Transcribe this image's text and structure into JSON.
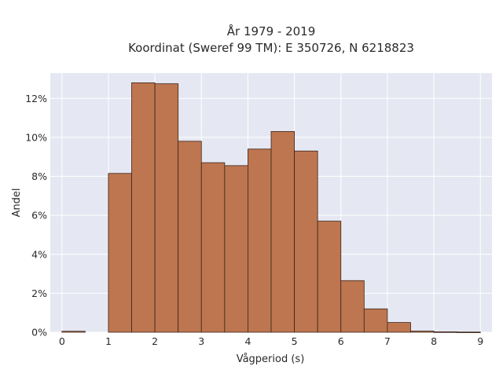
{
  "chart_data": {
    "type": "bar",
    "title_line1": "År 1979 - 2019",
    "title_line2": "Koordinat (Sweref 99 TM): E 350726, N 6218823",
    "xlabel": "Vågperiod (s)",
    "ylabel": "Andel",
    "xlim": [
      -0.25,
      9.25
    ],
    "ylim": [
      0,
      13.3
    ],
    "xticks": [
      0,
      1,
      2,
      3,
      4,
      5,
      6,
      7,
      8,
      9
    ],
    "yticks": [
      0,
      2,
      4,
      6,
      8,
      10,
      12
    ],
    "ytick_suffix": "%",
    "bin_width": 0.5,
    "bins": [
      {
        "start": 0.0,
        "value": 0.05
      },
      {
        "start": 0.5,
        "value": 0.0
      },
      {
        "start": 1.0,
        "value": 8.15
      },
      {
        "start": 1.5,
        "value": 12.8
      },
      {
        "start": 2.0,
        "value": 12.75
      },
      {
        "start": 2.5,
        "value": 9.8
      },
      {
        "start": 3.0,
        "value": 8.7
      },
      {
        "start": 3.5,
        "value": 8.55
      },
      {
        "start": 4.0,
        "value": 9.4
      },
      {
        "start": 4.5,
        "value": 10.3
      },
      {
        "start": 5.0,
        "value": 9.3
      },
      {
        "start": 5.5,
        "value": 5.7
      },
      {
        "start": 6.0,
        "value": 2.65
      },
      {
        "start": 6.5,
        "value": 1.2
      },
      {
        "start": 7.0,
        "value": 0.5
      },
      {
        "start": 7.5,
        "value": 0.06
      },
      {
        "start": 8.0,
        "value": 0.02
      },
      {
        "start": 8.5,
        "value": 0.01
      }
    ],
    "grid": true,
    "colors": {
      "bar_fill": "#bd7650",
      "bar_edge": "#3d2418",
      "plot_background": "#e5e8f2",
      "gridline": "#ffffff"
    }
  }
}
